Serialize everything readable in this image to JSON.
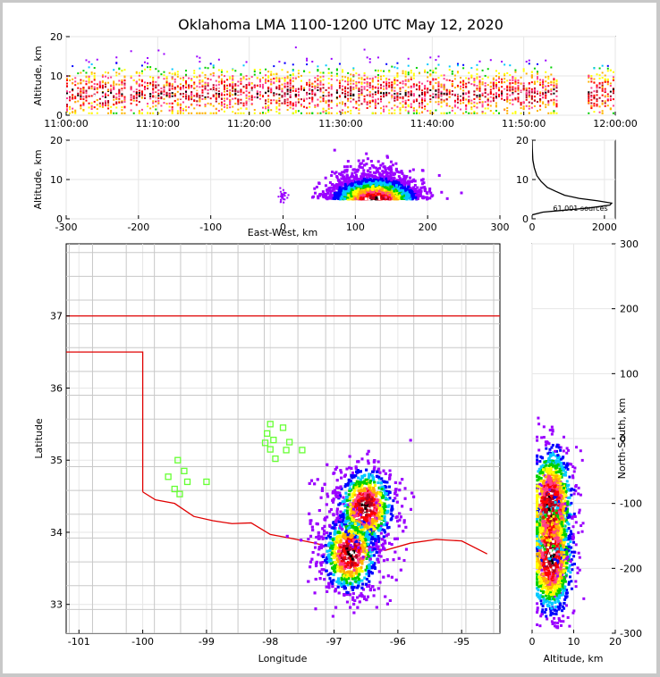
{
  "chart_data": [
    {
      "type": "scatter",
      "panel": "time-height",
      "title": "Oklahoma LMA 1100-1200 UTC May 12, 2020",
      "xlabel": "",
      "ylabel": "Altitude, km",
      "x_ticks": [
        "11:00:00",
        "11:10:00",
        "11:20:00",
        "11:30:00",
        "11:40:00",
        "11:50:00",
        "12:00:00"
      ],
      "xlim_minutes": [
        0,
        60
      ],
      "y_ticks": [
        0,
        10,
        20
      ],
      "ylim": [
        0,
        20
      ],
      "active_minutes": [
        [
          0,
          6.5
        ],
        [
          7,
          29
        ],
        [
          29.5,
          53.5
        ],
        [
          57,
          60
        ]
      ],
      "altitude_core_km": [
        2,
        12
      ]
    },
    {
      "type": "heatmap",
      "panel": "east-west-altitude",
      "xlabel": "East-West, km",
      "ylabel": "Altitude, km",
      "x_ticks": [
        -300,
        -200,
        -100,
        0,
        100,
        200,
        300
      ],
      "xlim": [
        -300,
        300
      ],
      "y_ticks": [
        0,
        10,
        20
      ],
      "ylim": [
        0,
        20
      ],
      "density_center_km": {
        "x": 125,
        "altitude": 5
      },
      "extent_x_km": [
        60,
        215
      ]
    },
    {
      "type": "line",
      "panel": "altitude-histogram",
      "annotation": "61,001 sources",
      "x_ticks": [
        0,
        2000
      ],
      "xlim": [
        0,
        2300
      ],
      "y_ticks": [
        0,
        10,
        20
      ],
      "ylim": [
        0,
        20
      ],
      "profile": [
        {
          "count": 0,
          "alt": 1.0
        },
        {
          "count": 300,
          "alt": 1.7
        },
        {
          "count": 900,
          "alt": 2.2
        },
        {
          "count": 1600,
          "alt": 2.8
        },
        {
          "count": 2150,
          "alt": 3.5
        },
        {
          "count": 2200,
          "alt": 4.0
        },
        {
          "count": 1800,
          "alt": 4.6
        },
        {
          "count": 1300,
          "alt": 5.2
        },
        {
          "count": 900,
          "alt": 6.0
        },
        {
          "count": 650,
          "alt": 7.0
        },
        {
          "count": 420,
          "alt": 8.0
        },
        {
          "count": 250,
          "alt": 9.5
        },
        {
          "count": 130,
          "alt": 11.0
        },
        {
          "count": 60,
          "alt": 13.0
        },
        {
          "count": 20,
          "alt": 15.0
        },
        {
          "count": 5,
          "alt": 18.0
        },
        {
          "count": 0,
          "alt": 20.0
        }
      ]
    },
    {
      "type": "heatmap",
      "panel": "plan-view",
      "xlabel": "Longitude",
      "ylabel": "Latitude",
      "x_ticks": [
        -101,
        -100,
        -99,
        -98,
        -97,
        -96,
        -95
      ],
      "xlim": [
        -101.2,
        -94.4
      ],
      "y_ticks": [
        33,
        34,
        35,
        36,
        37
      ],
      "ylim": [
        32.6,
        38.0
      ],
      "cores": [
        {
          "lon": -96.5,
          "lat": 34.35
        },
        {
          "lon": -96.75,
          "lat": 33.7
        }
      ],
      "stations": [
        {
          "lon": -99.45,
          "lat": 35.0
        },
        {
          "lon": -99.35,
          "lat": 34.85
        },
        {
          "lon": -99.6,
          "lat": 34.77
        },
        {
          "lon": -99.3,
          "lat": 34.7
        },
        {
          "lon": -99.5,
          "lat": 34.6
        },
        {
          "lon": -99.42,
          "lat": 34.53
        },
        {
          "lon": -99.0,
          "lat": 34.7
        },
        {
          "lon": -98.0,
          "lat": 35.5
        },
        {
          "lon": -98.05,
          "lat": 35.37
        },
        {
          "lon": -97.8,
          "lat": 35.45
        },
        {
          "lon": -98.08,
          "lat": 35.24
        },
        {
          "lon": -97.95,
          "lat": 35.28
        },
        {
          "lon": -97.7,
          "lat": 35.25
        },
        {
          "lon": -98.0,
          "lat": 35.15
        },
        {
          "lon": -97.75,
          "lat": 35.14
        },
        {
          "lon": -97.5,
          "lat": 35.14
        },
        {
          "lon": -97.92,
          "lat": 35.02
        }
      ]
    },
    {
      "type": "heatmap",
      "panel": "altitude-north-south",
      "xlabel": "Altitude, km",
      "ylabel": "North-South, km",
      "x_ticks": [
        0,
        10,
        20
      ],
      "xlim": [
        0,
        20
      ],
      "y_ticks": [
        -300,
        -200,
        -100,
        0,
        100,
        200,
        300
      ],
      "ylim": [
        -300,
        300
      ],
      "density_centers_km": [
        {
          "alt": 5,
          "ns": -105
        },
        {
          "alt": 5,
          "ns": -180
        }
      ]
    }
  ]
}
